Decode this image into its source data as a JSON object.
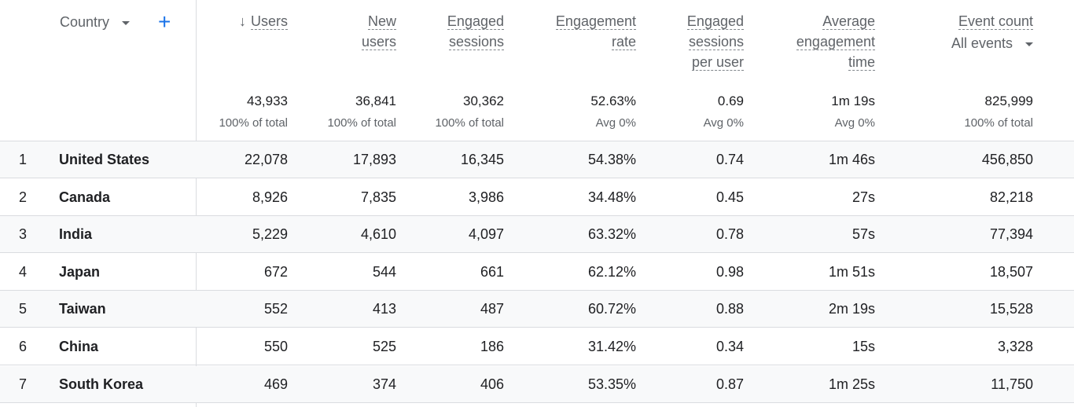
{
  "dimension": {
    "label": "Country"
  },
  "columns": [
    {
      "lines": [
        "Users"
      ],
      "sorted": true
    },
    {
      "lines": [
        "New",
        "users"
      ]
    },
    {
      "lines": [
        "Engaged",
        "sessions"
      ]
    },
    {
      "lines": [
        "Engagement",
        "rate"
      ]
    },
    {
      "lines": [
        "Engaged",
        "sessions",
        "per user"
      ]
    },
    {
      "lines": [
        "Average",
        "engagement",
        "time"
      ]
    },
    {
      "lines": [
        "Event count"
      ],
      "select": "All events"
    }
  ],
  "totals": [
    {
      "value": "43,933",
      "sub": "100% of total"
    },
    {
      "value": "36,841",
      "sub": "100% of total"
    },
    {
      "value": "30,362",
      "sub": "100% of total"
    },
    {
      "value": "52.63%",
      "sub": "Avg 0%"
    },
    {
      "value": "0.69",
      "sub": "Avg 0%"
    },
    {
      "value": "1m 19s",
      "sub": "Avg 0%"
    },
    {
      "value": "825,999",
      "sub": "100% of total"
    }
  ],
  "rows": [
    {
      "index": "1",
      "country": "United States",
      "values": [
        "22,078",
        "17,893",
        "16,345",
        "54.38%",
        "0.74",
        "1m 46s",
        "456,850"
      ]
    },
    {
      "index": "2",
      "country": "Canada",
      "values": [
        "8,926",
        "7,835",
        "3,986",
        "34.48%",
        "0.45",
        "27s",
        "82,218"
      ]
    },
    {
      "index": "3",
      "country": "India",
      "values": [
        "5,229",
        "4,610",
        "4,097",
        "63.32%",
        "0.78",
        "57s",
        "77,394"
      ]
    },
    {
      "index": "4",
      "country": "Japan",
      "values": [
        "672",
        "544",
        "661",
        "62.12%",
        "0.98",
        "1m 51s",
        "18,507"
      ]
    },
    {
      "index": "5",
      "country": "Taiwan",
      "values": [
        "552",
        "413",
        "487",
        "60.72%",
        "0.88",
        "2m 19s",
        "15,528"
      ]
    },
    {
      "index": "6",
      "country": "China",
      "values": [
        "550",
        "525",
        "186",
        "31.42%",
        "0.34",
        "15s",
        "3,328"
      ]
    },
    {
      "index": "7",
      "country": "South Korea",
      "values": [
        "469",
        "374",
        "406",
        "53.35%",
        "0.87",
        "1m 25s",
        "11,750"
      ]
    }
  ]
}
